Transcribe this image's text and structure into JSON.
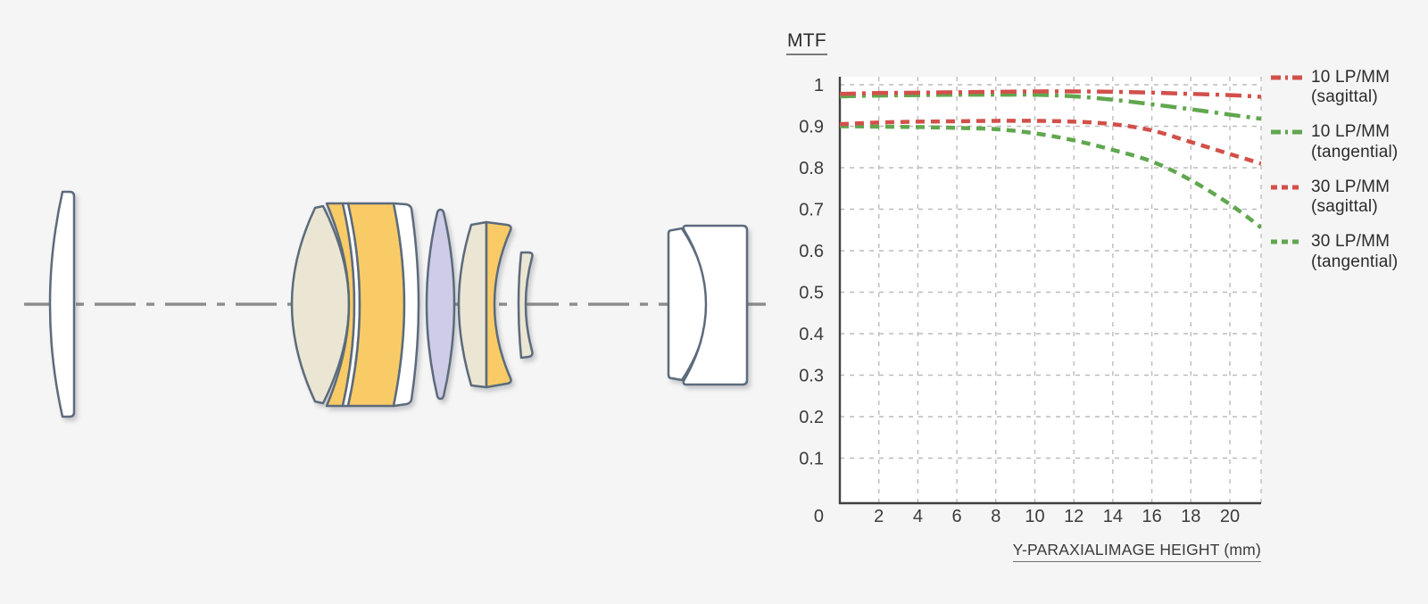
{
  "page": {
    "background": "#f5f5f5"
  },
  "lens_diagram": {
    "description": "lens construction cross-section",
    "palette": {
      "white": "#ffffff",
      "cream": "#ebe6d3",
      "amber": "#f8cb67",
      "lavender": "#cfcce8"
    },
    "outline_color": "#5c6b7c",
    "axis_color": "#8d8d8d",
    "elements": [
      {
        "id": 1,
        "fill": "white"
      },
      {
        "id": 2,
        "fill": "cream"
      },
      {
        "id": 3,
        "fill": "amber"
      },
      {
        "id": 4,
        "fill": "amber"
      },
      {
        "id": 5,
        "fill": "white"
      },
      {
        "id": 6,
        "fill": "lavender"
      },
      {
        "id": 7,
        "fill": "cream"
      },
      {
        "id": 8,
        "fill": "amber"
      },
      {
        "id": 9,
        "fill": "cream"
      },
      {
        "id": 10,
        "fill": "white"
      },
      {
        "id": 11,
        "fill": "white"
      }
    ]
  },
  "chart_data": {
    "type": "line",
    "title": "MTF",
    "xlabel": "Y-PARAXIALIMAGE HEIGHT (mm)",
    "ylabel": "",
    "xlim": [
      0,
      21.6
    ],
    "ylim": [
      0,
      1
    ],
    "grid": "dashed",
    "legend_position": "right",
    "origin_label": "0",
    "x_ticks": [
      2,
      4,
      6,
      8,
      10,
      12,
      14,
      16,
      18,
      20
    ],
    "y_ticks": [
      "0.1",
      "0.2",
      "0.3",
      "0.4",
      "0.5",
      "0.6",
      "0.7",
      "0.8",
      "0.9",
      "1"
    ],
    "x": [
      0,
      2,
      4,
      6,
      8,
      10,
      12,
      14,
      16,
      18,
      20,
      21.6
    ],
    "series": [
      {
        "name": "10 LP/MM (sagittal)",
        "label_lines": [
          "10 LP/MM",
          "(sagittal)"
        ],
        "color": "#d2504a",
        "style": "dash-dot",
        "values": [
          0.978,
          0.98,
          0.981,
          0.982,
          0.983,
          0.984,
          0.984,
          0.983,
          0.981,
          0.978,
          0.975,
          0.971
        ]
      },
      {
        "name": "10 LP/MM (tangential)",
        "label_lines": [
          "10 LP/MM",
          "(tangential)"
        ],
        "color": "#61a74f",
        "style": "dash-dot",
        "values": [
          0.972,
          0.974,
          0.975,
          0.976,
          0.976,
          0.976,
          0.972,
          0.964,
          0.953,
          0.941,
          0.928,
          0.918
        ]
      },
      {
        "name": "30 LP/MM (sagittal)",
        "label_lines": [
          "30 LP/MM",
          "(sagittal)"
        ],
        "color": "#d2504a",
        "style": "dashed",
        "values": [
          0.905,
          0.909,
          0.911,
          0.912,
          0.913,
          0.913,
          0.911,
          0.905,
          0.89,
          0.862,
          0.833,
          0.81
        ]
      },
      {
        "name": "30 LP/MM (tangential)",
        "label_lines": [
          "30 LP/MM",
          "(tangential)"
        ],
        "color": "#61a74f",
        "style": "dashed",
        "values": [
          0.9,
          0.899,
          0.898,
          0.896,
          0.893,
          0.883,
          0.866,
          0.843,
          0.815,
          0.77,
          0.712,
          0.656
        ]
      }
    ]
  }
}
